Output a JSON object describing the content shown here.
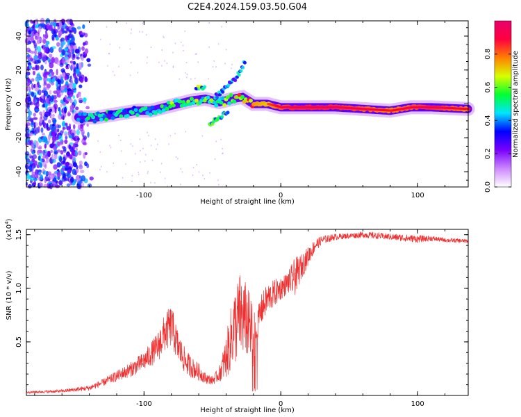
{
  "figure": {
    "title": "C2E4.2024.159.03.50.G04"
  },
  "chart_data": [
    {
      "type": "heatmap",
      "title": "C2E4.2024.159.03.50.G04",
      "xlabel": "Height of straight line (km)",
      "ylabel": "Frequency (Hz)",
      "xlim": [
        -186,
        137
      ],
      "ylim": [
        -49,
        49
      ],
      "x_ticks": [
        -100,
        0,
        100
      ],
      "y_ticks": [
        -40,
        -20,
        0,
        20,
        40
      ],
      "x_tick_labels": [
        "-100",
        "0",
        "100"
      ],
      "y_tick_labels": [
        "-40",
        "-20",
        "0",
        "20",
        "40"
      ],
      "colorbar": {
        "label": "Normalized spectral amplitude",
        "range": [
          0,
          1
        ],
        "ticks": [
          0.0,
          0.2,
          0.4,
          0.6,
          0.8
        ],
        "tick_labels": [
          "0.0",
          "0.2",
          "0.4",
          "0.6",
          "0.8"
        ],
        "colormap": [
          "#ffffff",
          "#cc88ff",
          "#7a00ff",
          "#0000ff",
          "#00e5ff",
          "#00ff30",
          "#d8ff00",
          "#ff8000",
          "#ff0040",
          "#e8006a"
        ]
      },
      "ridge": {
        "description": "main Doppler ridge frequency (Hz) vs height (km)",
        "x": [
          -148,
          -135,
          -120,
          -105,
          -95,
          -85,
          -75,
          -65,
          -55,
          -45,
          -35,
          -28,
          -20,
          -10,
          0,
          10,
          20,
          40,
          60,
          80,
          95,
          110,
          137
        ],
        "y": [
          -8,
          -8,
          -6,
          -4,
          -4,
          -2,
          0,
          2,
          3,
          1,
          3,
          4,
          0,
          0,
          -2,
          -2,
          -2,
          -2,
          -3,
          -4,
          -2,
          -2,
          -3
        ],
        "amplitude": [
          0.45,
          0.5,
          0.45,
          0.45,
          0.5,
          0.55,
          0.6,
          0.6,
          0.55,
          0.6,
          0.6,
          0.8,
          0.85,
          0.8,
          0.9,
          0.95,
          0.95,
          0.95,
          0.9,
          0.85,
          0.9,
          0.95,
          0.85
        ]
      },
      "branches": [
        {
          "x": [
            -48,
            -40,
            -32,
            -26
          ],
          "y": [
            4,
            10,
            16,
            25
          ],
          "amplitude": 0.35
        },
        {
          "x": [
            -52,
            -45,
            -38
          ],
          "y": [
            -12,
            -8,
            -4
          ],
          "amplitude": 0.45
        },
        {
          "x": [
            -62,
            -55
          ],
          "y": [
            9,
            10
          ],
          "amplitude": 0.5
        }
      ],
      "noise_region": {
        "x_range": [
          -186,
          -138
        ],
        "y_range": [
          -49,
          49
        ],
        "amplitude": 0.3
      }
    },
    {
      "type": "line",
      "xlabel": "Height of straight line (km)",
      "ylabel": "SNR (10 * v/v)",
      "y_multiplier_label": "(x10",
      "y_multiplier_exp": "4",
      "y_multiplier_close": ")",
      "xlim": [
        -186,
        137
      ],
      "ylim": [
        0,
        15500
      ],
      "x_ticks": [
        -100,
        0,
        100
      ],
      "y_ticks": [
        5000,
        10000,
        15000
      ],
      "x_tick_labels": [
        "-100",
        "0",
        "100"
      ],
      "y_tick_labels": [
        "0.5",
        "1.0",
        "1.5"
      ],
      "series": [
        {
          "color": "#ee3030",
          "envelope_x": [
            -186,
            -160,
            -140,
            -130,
            -120,
            -110,
            -100,
            -90,
            -85,
            -80,
            -75,
            -70,
            -65,
            -60,
            -55,
            -50,
            -45,
            -40,
            -35,
            -30,
            -25,
            -20,
            -18,
            -15,
            -10,
            -5,
            0,
            5,
            10,
            15,
            20,
            25,
            30,
            40,
            50,
            60,
            70,
            80,
            90,
            100,
            110,
            120,
            137
          ],
          "envelope_y": [
            300,
            400,
            700,
            1200,
            1800,
            2400,
            3200,
            4500,
            5800,
            6500,
            4500,
            3200,
            2600,
            2200,
            1600,
            1400,
            2000,
            3500,
            6000,
            7500,
            7000,
            5500,
            6000,
            7800,
            9000,
            9500,
            10000,
            10500,
            11000,
            12000,
            13000,
            14000,
            14500,
            14800,
            14900,
            15000,
            14900,
            14800,
            14700,
            14600,
            14650,
            14500,
            14400
          ],
          "envelope_noise": [
            100,
            150,
            250,
            350,
            500,
            700,
            900,
            1400,
            1800,
            2000,
            1500,
            1200,
            1000,
            800,
            500,
            400,
            700,
            2000,
            3500,
            4000,
            3500,
            3000,
            1200,
            1500,
            1400,
            1300,
            1100,
            1000,
            1800,
            1200,
            900,
            600,
            400,
            300,
            250,
            300,
            300,
            300,
            350,
            350,
            250,
            200,
            200
          ]
        }
      ]
    }
  ]
}
